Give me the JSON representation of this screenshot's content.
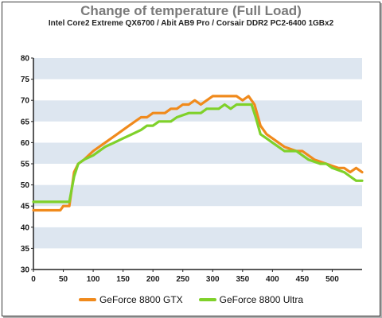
{
  "chart_data": {
    "type": "line",
    "title": "Change of temperature (Full Load)",
    "subtitle": "Intel Core2 Extreme QX6700 / Abit AB9 Pro / Corsair DDR2 PC2-6400 1GBx2",
    "xlabel": "",
    "ylabel": "",
    "xlim": [
      0,
      550
    ],
    "ylim": [
      30,
      80
    ],
    "x_ticks": [
      0,
      50,
      100,
      150,
      200,
      250,
      300,
      350,
      400,
      450,
      500
    ],
    "y_ticks": [
      30,
      35,
      40,
      45,
      50,
      55,
      60,
      65,
      70,
      75,
      80
    ],
    "grid": "alternating horizontal bands",
    "legend_position": "bottom",
    "series": [
      {
        "name": "GeForce 8800 GTX",
        "color": "#f08a1c",
        "points": [
          [
            0,
            44
          ],
          [
            30,
            44
          ],
          [
            45,
            44
          ],
          [
            50,
            45
          ],
          [
            60,
            45
          ],
          [
            68,
            53
          ],
          [
            75,
            55
          ],
          [
            85,
            56
          ],
          [
            100,
            58
          ],
          [
            120,
            60
          ],
          [
            140,
            62
          ],
          [
            160,
            64
          ],
          [
            180,
            66
          ],
          [
            190,
            66
          ],
          [
            200,
            67
          ],
          [
            220,
            67
          ],
          [
            230,
            68
          ],
          [
            240,
            68
          ],
          [
            250,
            69
          ],
          [
            260,
            69
          ],
          [
            270,
            70
          ],
          [
            280,
            69
          ],
          [
            290,
            70
          ],
          [
            300,
            71
          ],
          [
            320,
            71
          ],
          [
            340,
            71
          ],
          [
            350,
            70
          ],
          [
            360,
            71
          ],
          [
            370,
            69
          ],
          [
            380,
            64
          ],
          [
            390,
            62
          ],
          [
            400,
            61
          ],
          [
            420,
            59
          ],
          [
            440,
            58
          ],
          [
            450,
            58
          ],
          [
            470,
            56
          ],
          [
            490,
            55
          ],
          [
            510,
            54
          ],
          [
            520,
            54
          ],
          [
            530,
            53
          ],
          [
            540,
            54
          ],
          [
            550,
            53
          ]
        ]
      },
      {
        "name": "GeForce 8800 Ultra",
        "color": "#7fd12a",
        "points": [
          [
            0,
            46
          ],
          [
            50,
            46
          ],
          [
            60,
            46
          ],
          [
            68,
            52
          ],
          [
            75,
            55
          ],
          [
            85,
            56
          ],
          [
            100,
            57
          ],
          [
            120,
            59
          ],
          [
            135,
            60
          ],
          [
            150,
            61
          ],
          [
            165,
            62
          ],
          [
            180,
            63
          ],
          [
            190,
            64
          ],
          [
            200,
            64
          ],
          [
            210,
            65
          ],
          [
            230,
            65
          ],
          [
            240,
            66
          ],
          [
            260,
            67
          ],
          [
            280,
            67
          ],
          [
            290,
            68
          ],
          [
            310,
            68
          ],
          [
            320,
            69
          ],
          [
            330,
            68
          ],
          [
            340,
            69
          ],
          [
            350,
            69
          ],
          [
            365,
            69
          ],
          [
            372,
            66
          ],
          [
            380,
            62
          ],
          [
            390,
            61
          ],
          [
            400,
            60
          ],
          [
            420,
            58
          ],
          [
            440,
            58
          ],
          [
            460,
            56
          ],
          [
            480,
            55
          ],
          [
            490,
            55
          ],
          [
            500,
            54
          ],
          [
            520,
            53
          ],
          [
            530,
            52
          ],
          [
            540,
            51
          ],
          [
            550,
            51
          ]
        ]
      }
    ]
  }
}
